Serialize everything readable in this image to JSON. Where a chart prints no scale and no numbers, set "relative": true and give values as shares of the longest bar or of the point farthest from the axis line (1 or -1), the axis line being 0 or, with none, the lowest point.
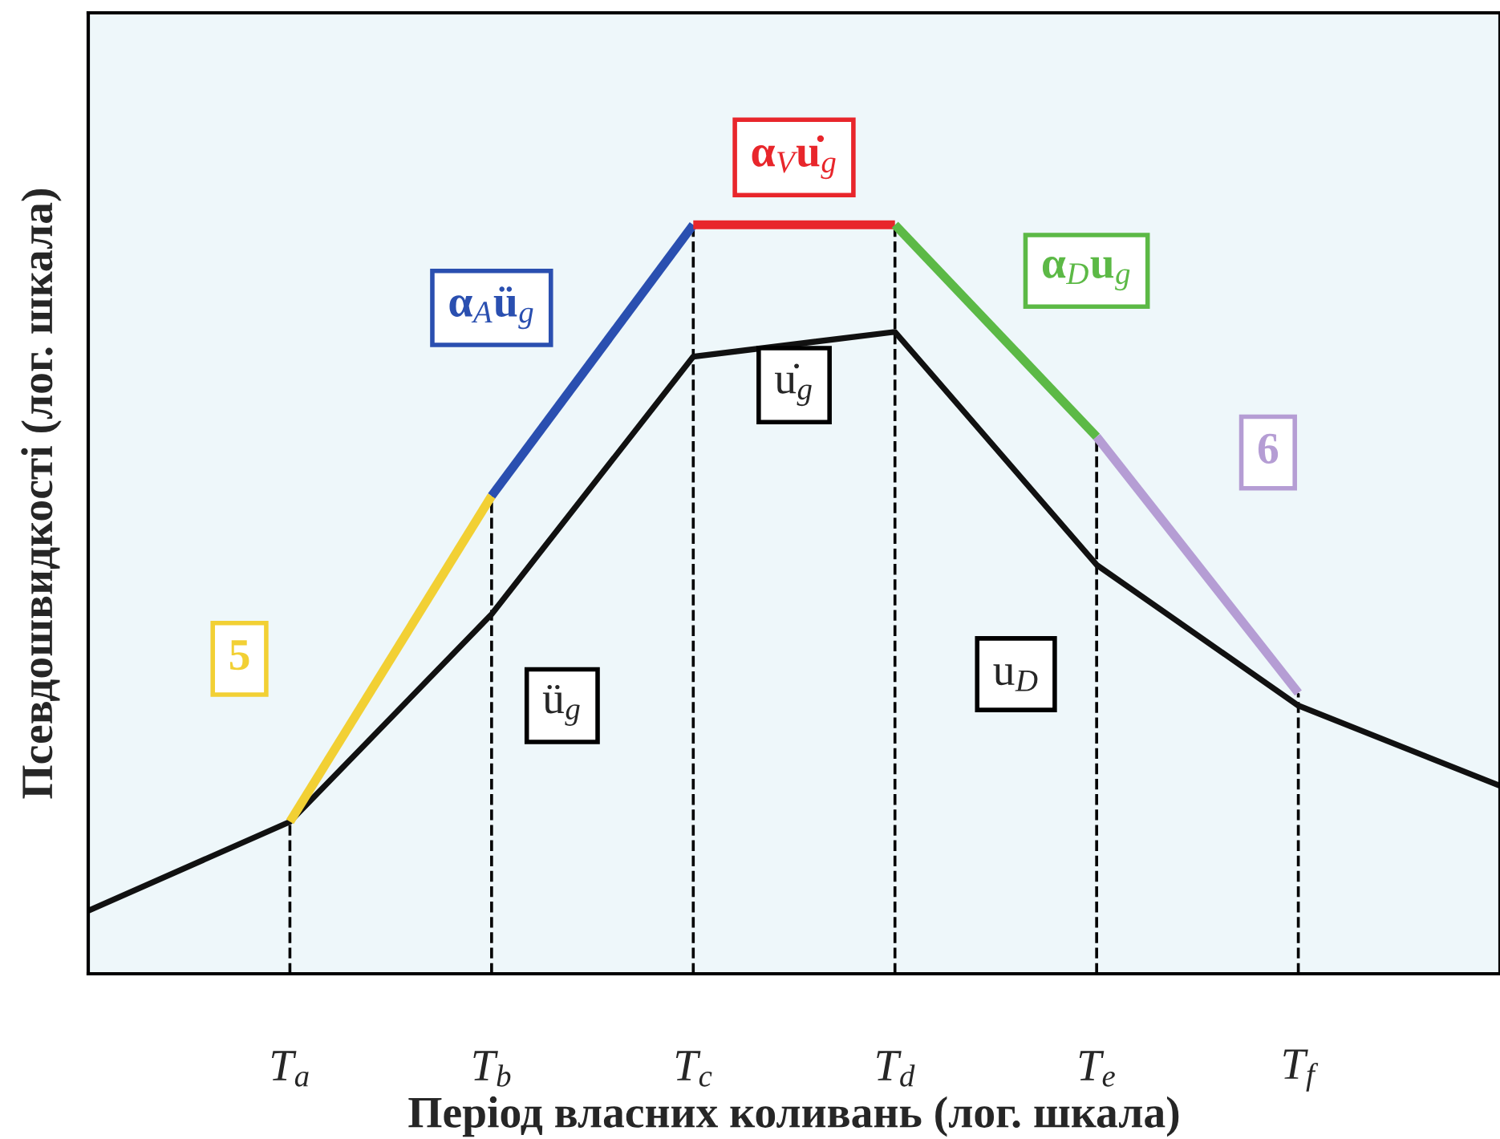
{
  "chart_data": {
    "type": "line",
    "relative": true,
    "xlabel": "Період власних коливань (лог. шкала)",
    "ylabel": "Псевдошвидкості (лог. шкала)",
    "categories": [
      null,
      "T$_{a}$",
      "T$_{b}$",
      "T$_{c}$",
      "T$_{d}$",
      "T$_{e}$",
      "T$_{f}$",
      null
    ],
    "series": [
      {
        "color": "#111111",
        "values": [
          0.084,
          0.203,
          0.48,
          0.824,
          0.857,
          0.546,
          0.358,
          0.251
        ]
      },
      {
        "name": "5",
        "color": "#f2d034",
        "values": [
          null,
          0.203,
          0.638,
          null,
          null,
          null,
          null,
          null
        ]
      },
      {
        "name": "α$_{A}$ü$_{g}$",
        "color": "#2a4fb0",
        "values": [
          null,
          null,
          0.638,
          1.0,
          null,
          null,
          null,
          null
        ]
      },
      {
        "name": "α$_{V}$u̇$_{g}$",
        "color": "#e8262b",
        "values": [
          null,
          null,
          null,
          1.0,
          1.0,
          null,
          null,
          null
        ]
      },
      {
        "name": "α$_{D}$u$_{g}$",
        "color": "#5cb946",
        "values": [
          null,
          null,
          null,
          null,
          1.0,
          0.717,
          null,
          null
        ]
      },
      {
        "name": "6",
        "color": "#b59dd4",
        "values": [
          null,
          null,
          null,
          null,
          null,
          0.717,
          0.375,
          null
        ]
      }
    ],
    "annotations": [
      "ü$_{g}$",
      "u̇$_{g}$",
      "u$_{D}$"
    ],
    "grid": "x",
    "legend": false,
    "marker": "none",
    "line_style": "solid"
  }
}
